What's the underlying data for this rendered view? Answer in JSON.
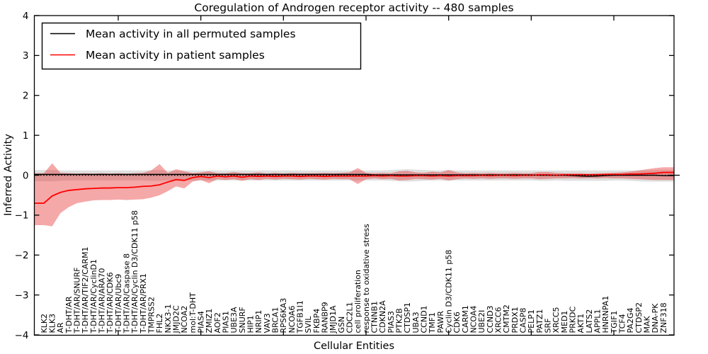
{
  "chart_data": {
    "type": "line",
    "title": "Coregulation of Androgen receptor activity -- 480 samples",
    "xlabel": "Cellular Entities",
    "ylabel": "Inferred Activity",
    "ylim": [
      -4,
      4
    ],
    "grid": false,
    "legend_position": "upper left",
    "ytick_labels": [
      "4",
      "3",
      "2",
      "1",
      "0",
      "−1",
      "−2",
      "−3",
      "−4"
    ],
    "ytick_values": [
      4,
      3,
      2,
      1,
      0,
      -1,
      -2,
      -3,
      -4
    ],
    "categories": [
      "KLK2",
      "KLK3",
      "AR",
      "T-DHT/AR",
      "T-DHT/AR/SNURF",
      "T-DHT/AR/TIF2/CARM1",
      "T-DHT/AR/CyclinD1",
      "T-DHT/AR/ARA70",
      "T-DHT/AR/CDK6",
      "T-DHT/AR/Ubc9",
      "T-DHT/AR/Caspase 8",
      "T-DHT/AR/Cyclin D3/CDK11 p58",
      "T-DHT/AR/PRX1",
      "TMPRSS2",
      "FHL2",
      "NKX3-1",
      "JMJD2C",
      "NCOA2",
      "mol:T-DHT",
      "PIAS4",
      "ZMIZ1",
      "AOF2",
      "PIAS1",
      "UBE3A",
      "SNURF",
      "HIP1",
      "NRIP1",
      "VAV3",
      "BRCA1",
      "RPS6KA3",
      "NCOA6",
      "TGFB1I1",
      "SVIL",
      "FKBP4",
      "RANBP9",
      "JMJD1A",
      "GSN",
      "CDC2L1",
      "cell proliferation",
      "response to oxidative stress",
      "CTNNB1",
      "CDKN2A",
      "PIAS3",
      "PTK2B",
      "CTDSP1",
      "UBA3",
      "CCND1",
      "TMF1",
      "PAWR",
      "Cyclin D3/CDK11 p58",
      "CDK6",
      "CARM1",
      "NCOA4",
      "UBE2I",
      "CCND3",
      "XRCC6",
      "CMTM2",
      "PRDX1",
      "CASP8",
      "PELP1",
      "PATZ1",
      "SRF",
      "XRCC5",
      "MED1",
      "PRKDC",
      "AKT1",
      "LATS2",
      "APPL1",
      "HNRNPA1",
      "TGIF1",
      "TCF4",
      "PA2G4",
      "CTDSP2",
      "MAK",
      "DNA-PK",
      "ZNF318"
    ],
    "series": [
      {
        "name": "Mean activity in all permuted samples",
        "color": "#000000",
        "values": [
          0.02,
          0.02,
          0.02,
          0.02,
          0.02,
          0.02,
          0.02,
          0.02,
          0.02,
          0.02,
          0.02,
          0.02,
          0.02,
          0.02,
          0.02,
          0.02,
          0.02,
          0.02,
          0.02,
          0.02,
          0.02,
          0.02,
          0.02,
          0.02,
          0.02,
          0.02,
          0.02,
          0.02,
          0.02,
          0.02,
          0.02,
          0.02,
          0.02,
          0.02,
          0.02,
          0.02,
          0.02,
          0.02,
          0.02,
          0.02,
          0.01,
          0.01,
          0.01,
          0.01,
          0.01,
          0.01,
          0.01,
          0.01,
          0.01,
          0.01,
          0.01,
          0.01,
          0.01,
          0.01,
          0.01,
          0.01,
          0.01,
          0.01,
          0.01,
          0.01,
          0.0,
          0.0,
          0.0,
          0.0,
          -0.01,
          -0.02,
          -0.03,
          -0.02,
          -0.01,
          0.0,
          0.0,
          0.0,
          0.0,
          0.0,
          0.0,
          -0.01
        ],
        "band_upper": [
          0.13,
          0.13,
          0.12,
          0.12,
          0.12,
          0.12,
          0.12,
          0.12,
          0.12,
          0.12,
          0.12,
          0.12,
          0.12,
          0.13,
          0.13,
          0.12,
          0.12,
          0.12,
          0.12,
          0.12,
          0.12,
          0.12,
          0.12,
          0.12,
          0.12,
          0.12,
          0.12,
          0.12,
          0.12,
          0.12,
          0.12,
          0.12,
          0.12,
          0.12,
          0.12,
          0.12,
          0.12,
          0.12,
          0.12,
          0.12,
          0.12,
          0.12,
          0.13,
          0.14,
          0.15,
          0.14,
          0.13,
          0.12,
          0.12,
          0.13,
          0.12,
          0.12,
          0.12,
          0.12,
          0.12,
          0.12,
          0.12,
          0.12,
          0.12,
          0.12,
          0.12,
          0.12,
          0.12,
          0.12,
          0.12,
          0.12,
          0.12,
          0.12,
          0.12,
          0.12,
          0.12,
          0.12,
          0.12,
          0.12,
          0.13,
          0.13
        ],
        "band_lower": [
          -0.15,
          -0.15,
          -0.14,
          -0.13,
          -0.13,
          -0.13,
          -0.13,
          -0.13,
          -0.13,
          -0.13,
          -0.13,
          -0.13,
          -0.13,
          -0.14,
          -0.14,
          -0.13,
          -0.13,
          -0.13,
          -0.13,
          -0.13,
          -0.13,
          -0.13,
          -0.13,
          -0.13,
          -0.13,
          -0.13,
          -0.13,
          -0.13,
          -0.13,
          -0.13,
          -0.13,
          -0.13,
          -0.13,
          -0.13,
          -0.13,
          -0.13,
          -0.13,
          -0.13,
          -0.13,
          -0.13,
          -0.13,
          -0.13,
          -0.14,
          -0.15,
          -0.16,
          -0.15,
          -0.14,
          -0.13,
          -0.13,
          -0.14,
          -0.13,
          -0.13,
          -0.13,
          -0.13,
          -0.13,
          -0.13,
          -0.13,
          -0.13,
          -0.13,
          -0.13,
          -0.14,
          -0.14,
          -0.13,
          -0.14,
          -0.14,
          -0.14,
          -0.14,
          -0.14,
          -0.14,
          -0.13,
          -0.13,
          -0.14,
          -0.15,
          -0.16,
          -0.16,
          -0.16
        ],
        "band_color": "#bfbfbf"
      },
      {
        "name": "Mean activity in patient samples",
        "color": "#ff0000",
        "values": [
          -0.7,
          -0.52,
          -0.43,
          -0.38,
          -0.36,
          -0.34,
          -0.33,
          -0.32,
          -0.32,
          -0.31,
          -0.31,
          -0.3,
          -0.28,
          -0.27,
          -0.24,
          -0.17,
          -0.11,
          -0.13,
          -0.06,
          -0.03,
          -0.06,
          -0.02,
          -0.04,
          -0.02,
          -0.05,
          -0.02,
          -0.03,
          -0.02,
          -0.03,
          -0.02,
          -0.02,
          -0.03,
          -0.02,
          -0.02,
          -0.03,
          -0.02,
          -0.02,
          -0.02,
          -0.02,
          -0.02,
          -0.01,
          -0.02,
          -0.01,
          -0.02,
          -0.02,
          -0.01,
          -0.01,
          -0.02,
          -0.01,
          -0.02,
          -0.01,
          -0.01,
          -0.01,
          0.0,
          -0.01,
          0.0,
          0.0,
          -0.01,
          0.0,
          0.0,
          0.01,
          0.01,
          0.0,
          0.01,
          0.01,
          0.01,
          0.01,
          0.01,
          0.02,
          0.02,
          0.02,
          0.03,
          0.03,
          0.04,
          0.05,
          0.07
        ],
        "band_upper": [
          0.05,
          0.3,
          0.06,
          0.05,
          0.04,
          0.05,
          0.04,
          0.05,
          0.04,
          0.05,
          0.04,
          0.05,
          0.06,
          0.12,
          0.28,
          0.06,
          0.15,
          0.1,
          0.05,
          0.07,
          0.1,
          0.05,
          0.05,
          0.08,
          0.05,
          0.05,
          0.07,
          0.04,
          0.06,
          0.04,
          0.06,
          0.05,
          0.05,
          0.05,
          0.06,
          0.05,
          0.06,
          0.07,
          0.18,
          0.06,
          0.05,
          0.06,
          0.05,
          0.1,
          0.11,
          0.07,
          0.06,
          0.09,
          0.07,
          0.13,
          0.07,
          0.05,
          0.06,
          0.05,
          0.06,
          0.05,
          0.05,
          0.06,
          0.05,
          0.05,
          0.08,
          0.08,
          0.06,
          0.05,
          0.05,
          0.05,
          0.04,
          0.05,
          0.05,
          0.06,
          0.07,
          0.09,
          0.12,
          0.15,
          0.18,
          0.2
        ],
        "band_lower": [
          -1.25,
          -1.28,
          -0.95,
          -0.8,
          -0.7,
          -0.66,
          -0.63,
          -0.62,
          -0.62,
          -0.61,
          -0.62,
          -0.61,
          -0.6,
          -0.56,
          -0.5,
          -0.4,
          -0.28,
          -0.33,
          -0.16,
          -0.12,
          -0.2,
          -0.1,
          -0.12,
          -0.1,
          -0.14,
          -0.1,
          -0.12,
          -0.09,
          -0.11,
          -0.09,
          -0.1,
          -0.11,
          -0.09,
          -0.1,
          -0.11,
          -0.09,
          -0.1,
          -0.1,
          -0.22,
          -0.1,
          -0.08,
          -0.1,
          -0.09,
          -0.13,
          -0.12,
          -0.09,
          -0.1,
          -0.11,
          -0.09,
          -0.13,
          -0.1,
          -0.08,
          -0.09,
          -0.08,
          -0.09,
          -0.08,
          -0.08,
          -0.09,
          -0.08,
          -0.08,
          -0.1,
          -0.09,
          -0.08,
          -0.08,
          -0.07,
          -0.08,
          -0.07,
          -0.08,
          -0.07,
          -0.08,
          -0.08,
          -0.09,
          -0.1,
          -0.11,
          -0.12,
          -0.12
        ],
        "band_color": "#e83030"
      }
    ],
    "legend": [
      {
        "label": "Mean activity in all permuted samples",
        "color": "#000000"
      },
      {
        "label": "Mean activity in patient samples",
        "color": "#ff0000"
      }
    ]
  }
}
